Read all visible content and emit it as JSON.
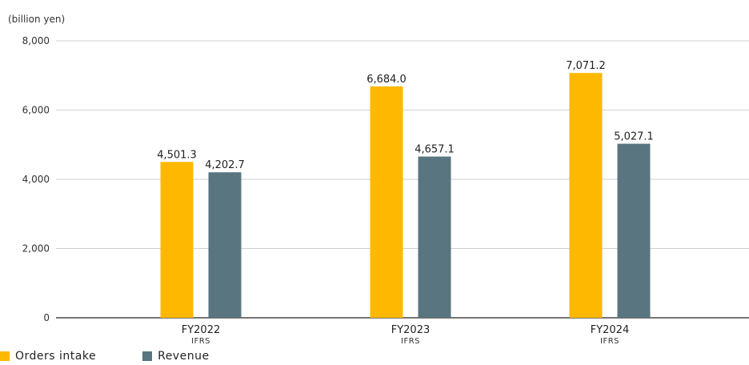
{
  "chart_data": {
    "type": "bar",
    "unit_label": "(billion yen)",
    "categories": [
      "FY2022",
      "FY2023",
      "FY2024"
    ],
    "category_sublabels": [
      "IFRS",
      "IFRS",
      "IFRS"
    ],
    "series": [
      {
        "name": "Orders intake",
        "color": "#FFB800",
        "values": [
          4501.3,
          6684.0,
          7071.2
        ],
        "labels": [
          "4,501.3",
          "6,684.0",
          "7,071.2"
        ]
      },
      {
        "name": "Revenue",
        "color": "#587580",
        "values": [
          4202.7,
          4657.1,
          5027.1
        ],
        "labels": [
          "4,202.7",
          "4,657.1",
          "5,027.1"
        ]
      }
    ],
    "ylim": [
      0,
      8000
    ],
    "yticks": [
      0,
      2000,
      4000,
      6000,
      8000
    ],
    "ytick_labels": [
      "0",
      "2,000",
      "4,000",
      "6,000",
      "8,000"
    ],
    "grid": true,
    "legend_position": "bottom-left"
  }
}
